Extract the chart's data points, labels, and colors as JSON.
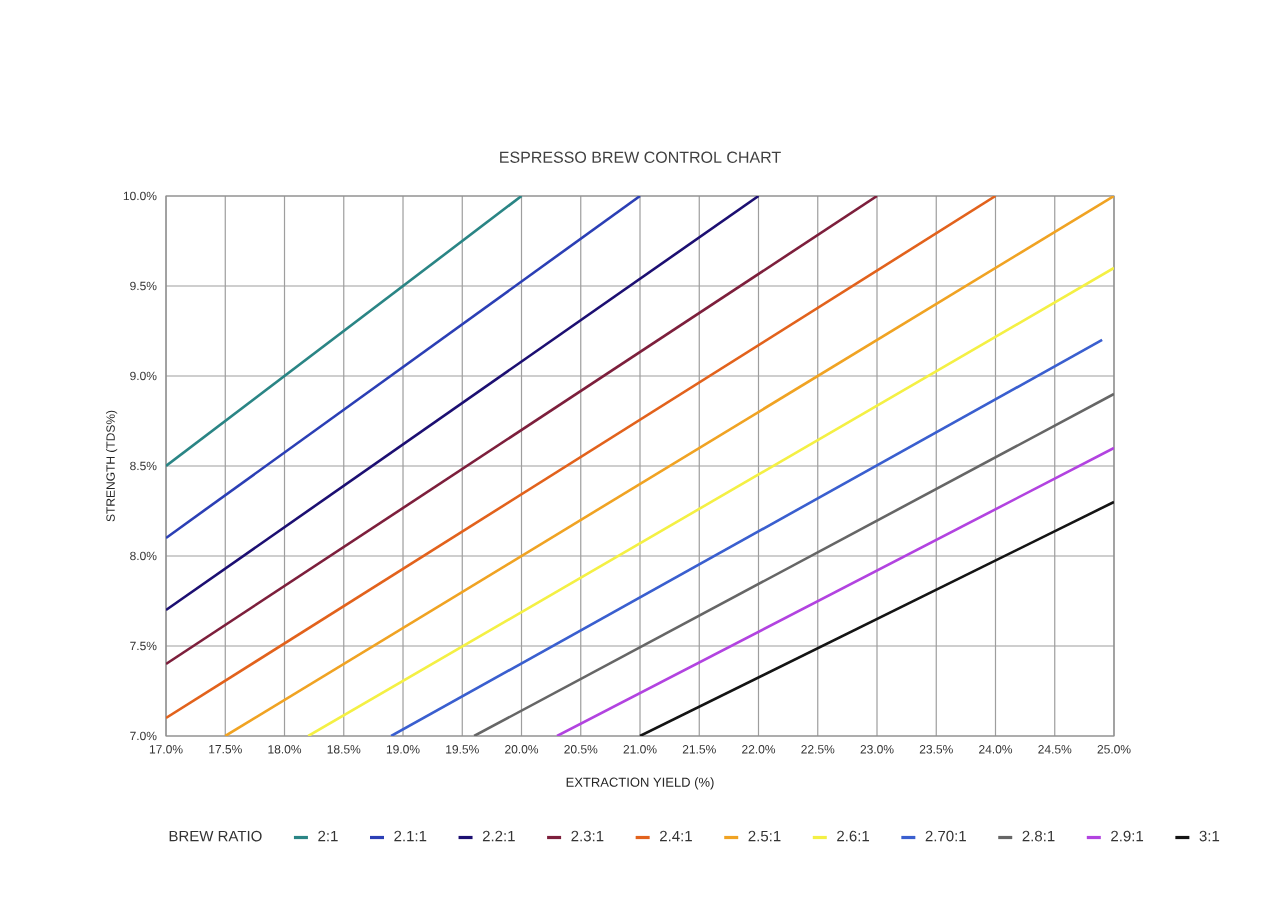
{
  "chart_data": {
    "type": "line",
    "title": "ESPRESSO BREW CONTROL CHART",
    "xlabel": "EXTRACTION YIELD (%)",
    "ylabel": "STRENGTH (TDS%)",
    "legend_title": "BREW RATIO",
    "xlim": [
      17,
      25
    ],
    "ylim": [
      7,
      10
    ],
    "xticks": [
      {
        "value": 17.0,
        "label": "17.0%"
      },
      {
        "value": 17.5,
        "label": "17.5%"
      },
      {
        "value": 18.0,
        "label": "18.0%"
      },
      {
        "value": 18.5,
        "label": "18.5%"
      },
      {
        "value": 19.0,
        "label": "19.0%"
      },
      {
        "value": 19.5,
        "label": "19.5%"
      },
      {
        "value": 20.0,
        "label": "20.0%"
      },
      {
        "value": 20.5,
        "label": "20.5%"
      },
      {
        "value": 21.0,
        "label": "21.0%"
      },
      {
        "value": 21.5,
        "label": "21.5%"
      },
      {
        "value": 22.0,
        "label": "22.0%"
      },
      {
        "value": 22.5,
        "label": "22.5%"
      },
      {
        "value": 23.0,
        "label": "23.0%"
      },
      {
        "value": 23.5,
        "label": "23.5%"
      },
      {
        "value": 24.0,
        "label": "24.0%"
      },
      {
        "value": 24.5,
        "label": "24.5%"
      },
      {
        "value": 25.0,
        "label": "25.0%"
      }
    ],
    "yticks": [
      {
        "value": 7.0,
        "label": "7.0%"
      },
      {
        "value": 7.5,
        "label": "7.5%"
      },
      {
        "value": 8.0,
        "label": "8.0%"
      },
      {
        "value": 8.5,
        "label": "8.5%"
      },
      {
        "value": 9.0,
        "label": "9.0%"
      },
      {
        "value": 9.5,
        "label": "9.5%"
      },
      {
        "value": 10.0,
        "label": "10.0%"
      }
    ],
    "grid": true,
    "legend": "bottom",
    "marker": "none",
    "line_style": "solid",
    "series": [
      {
        "name": "2:1",
        "color": "#2a8585",
        "x": [
          17.0,
          20.0
        ],
        "values": [
          8.5,
          10.0
        ]
      },
      {
        "name": "2.1:1",
        "color": "#2b3fb5",
        "x": [
          17.0,
          21.0
        ],
        "values": [
          8.1,
          10.0
        ]
      },
      {
        "name": "2.2:1",
        "color": "#1c0f72",
        "x": [
          17.0,
          22.0
        ],
        "values": [
          7.7,
          10.0
        ]
      },
      {
        "name": "2.3:1",
        "color": "#7d1f3c",
        "x": [
          17.0,
          23.0
        ],
        "values": [
          7.4,
          10.0
        ]
      },
      {
        "name": "2.4:1",
        "color": "#e2621c",
        "x": [
          17.0,
          24.0
        ],
        "values": [
          7.1,
          10.0
        ]
      },
      {
        "name": "2.5:1",
        "color": "#f0a323",
        "x": [
          17.5,
          25.0
        ],
        "values": [
          7.0,
          10.0
        ]
      },
      {
        "name": "2.6:1",
        "color": "#f4f044",
        "x": [
          18.2,
          25.0
        ],
        "values": [
          7.0,
          9.6
        ]
      },
      {
        "name": "2.70:1",
        "color": "#3a5fcf",
        "x": [
          18.9,
          24.9
        ],
        "values": [
          7.0,
          9.2
        ]
      },
      {
        "name": "2.8:1",
        "color": "#666666",
        "x": [
          19.6,
          25.0
        ],
        "values": [
          7.0,
          8.9
        ]
      },
      {
        "name": "2.9:1",
        "color": "#b243e0",
        "x": [
          20.3,
          25.0
        ],
        "values": [
          7.0,
          8.6
        ]
      },
      {
        "name": "3:1",
        "color": "#141414",
        "x": [
          21.0,
          25.0
        ],
        "values": [
          7.0,
          8.3
        ]
      }
    ]
  }
}
